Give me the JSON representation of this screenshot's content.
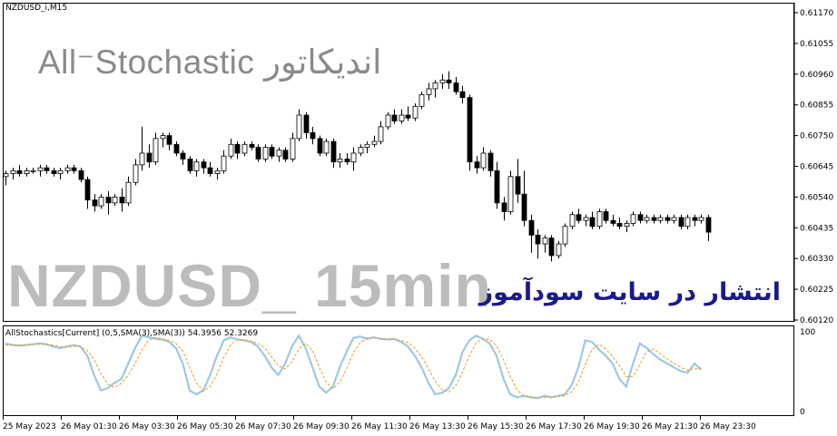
{
  "chart": {
    "symbol_label": "NZDUSD_i,M15",
    "price_axis": [
      "0.61170",
      "0.61055",
      "0.60960",
      "0.60855",
      "0.60750",
      "0.60645",
      "0.60540",
      "0.60435",
      "0.60330",
      "0.60225",
      "0.60120"
    ],
    "time_axis": [
      "25 May 2023",
      "26 May 01:30",
      "26 May 03:30",
      "26 May 05:30",
      "26 May 07:30",
      "26 May 09:30",
      "26 May 11:30",
      "26 May 13:30",
      "26 May 15:30",
      "26 May 17:30",
      "26 May 19:30",
      "26 May 21:30",
      "26 May 23:30"
    ],
    "colors": {
      "bull": "#ffffff",
      "bear": "#000000",
      "wick": "#000000",
      "stoch_main": "#9fc8e3",
      "stoch_signal": "#f39a1e",
      "publish_text": "#1a1a8c"
    }
  },
  "watermarks": {
    "indicator_title": "All⁻Stochastic اندیکاتور",
    "pair_title": "NZDUSD_ 15min",
    "publish_text": "انتشار در سایت سودآموز"
  },
  "indicator": {
    "label": "AllStochastics[Current] (0,5,SMA(3),SMA(3)) 54.3956 52.3269",
    "scale_top": "100",
    "scale_bottom": "0"
  },
  "chart_data": {
    "type": "candlestick",
    "price_range": [
      0.6012,
      0.6117
    ],
    "candles": [
      {
        "o": 0.6061,
        "h": 0.6063,
        "l": 0.6058,
        "c": 0.6062
      },
      {
        "o": 0.6062,
        "h": 0.6064,
        "l": 0.606,
        "c": 0.6063
      },
      {
        "o": 0.6063,
        "h": 0.6065,
        "l": 0.6061,
        "c": 0.6062
      },
      {
        "o": 0.6062,
        "h": 0.6064,
        "l": 0.6061,
        "c": 0.6063
      },
      {
        "o": 0.6063,
        "h": 0.6064,
        "l": 0.6062,
        "c": 0.6063
      },
      {
        "o": 0.6063,
        "h": 0.6065,
        "l": 0.6061,
        "c": 0.6064
      },
      {
        "o": 0.6064,
        "h": 0.6065,
        "l": 0.6062,
        "c": 0.6063
      },
      {
        "o": 0.6063,
        "h": 0.6064,
        "l": 0.6061,
        "c": 0.6062
      },
      {
        "o": 0.6062,
        "h": 0.6064,
        "l": 0.606,
        "c": 0.6063
      },
      {
        "o": 0.6063,
        "h": 0.6065,
        "l": 0.6062,
        "c": 0.6064
      },
      {
        "o": 0.6064,
        "h": 0.6065,
        "l": 0.6062,
        "c": 0.6063
      },
      {
        "o": 0.6063,
        "h": 0.6064,
        "l": 0.6059,
        "c": 0.606
      },
      {
        "o": 0.606,
        "h": 0.6061,
        "l": 0.605,
        "c": 0.6053
      },
      {
        "o": 0.6053,
        "h": 0.6055,
        "l": 0.6049,
        "c": 0.6051
      },
      {
        "o": 0.6051,
        "h": 0.6055,
        "l": 0.605,
        "c": 0.6054
      },
      {
        "o": 0.6054,
        "h": 0.6056,
        "l": 0.6048,
        "c": 0.6052
      },
      {
        "o": 0.6052,
        "h": 0.6055,
        "l": 0.6051,
        "c": 0.6054
      },
      {
        "o": 0.6054,
        "h": 0.6057,
        "l": 0.6049,
        "c": 0.6052
      },
      {
        "o": 0.6052,
        "h": 0.6061,
        "l": 0.6051,
        "c": 0.6059
      },
      {
        "o": 0.6059,
        "h": 0.6067,
        "l": 0.6058,
        "c": 0.6065
      },
      {
        "o": 0.6065,
        "h": 0.6078,
        "l": 0.6063,
        "c": 0.6069
      },
      {
        "o": 0.6069,
        "h": 0.6072,
        "l": 0.6064,
        "c": 0.6066
      },
      {
        "o": 0.6066,
        "h": 0.6076,
        "l": 0.6065,
        "c": 0.6074
      },
      {
        "o": 0.6074,
        "h": 0.6076,
        "l": 0.6071,
        "c": 0.6075
      },
      {
        "o": 0.6075,
        "h": 0.6076,
        "l": 0.607,
        "c": 0.6072
      },
      {
        "o": 0.6072,
        "h": 0.6073,
        "l": 0.6068,
        "c": 0.6069
      },
      {
        "o": 0.6069,
        "h": 0.607,
        "l": 0.6065,
        "c": 0.6067
      },
      {
        "o": 0.6067,
        "h": 0.6068,
        "l": 0.6062,
        "c": 0.6063
      },
      {
        "o": 0.6063,
        "h": 0.6067,
        "l": 0.6061,
        "c": 0.6066
      },
      {
        "o": 0.6066,
        "h": 0.6067,
        "l": 0.6062,
        "c": 0.6064
      },
      {
        "o": 0.6064,
        "h": 0.6066,
        "l": 0.6061,
        "c": 0.6062
      },
      {
        "o": 0.6062,
        "h": 0.6064,
        "l": 0.606,
        "c": 0.6063
      },
      {
        "o": 0.6063,
        "h": 0.607,
        "l": 0.6062,
        "c": 0.6068
      },
      {
        "o": 0.6068,
        "h": 0.6074,
        "l": 0.6067,
        "c": 0.6072
      },
      {
        "o": 0.6072,
        "h": 0.6073,
        "l": 0.6067,
        "c": 0.6069
      },
      {
        "o": 0.6069,
        "h": 0.6073,
        "l": 0.6068,
        "c": 0.6072
      },
      {
        "o": 0.6072,
        "h": 0.6073,
        "l": 0.607,
        "c": 0.6071
      },
      {
        "o": 0.6071,
        "h": 0.6072,
        "l": 0.6066,
        "c": 0.6067
      },
      {
        "o": 0.6067,
        "h": 0.6072,
        "l": 0.6066,
        "c": 0.6071
      },
      {
        "o": 0.6071,
        "h": 0.6072,
        "l": 0.6067,
        "c": 0.6068
      },
      {
        "o": 0.6068,
        "h": 0.6071,
        "l": 0.6066,
        "c": 0.607
      },
      {
        "o": 0.607,
        "h": 0.6071,
        "l": 0.6066,
        "c": 0.6067
      },
      {
        "o": 0.6067,
        "h": 0.6076,
        "l": 0.6066,
        "c": 0.6074
      },
      {
        "o": 0.6074,
        "h": 0.6084,
        "l": 0.6073,
        "c": 0.6082
      },
      {
        "o": 0.6082,
        "h": 0.6083,
        "l": 0.6074,
        "c": 0.6076
      },
      {
        "o": 0.6076,
        "h": 0.6078,
        "l": 0.6072,
        "c": 0.6074
      },
      {
        "o": 0.6074,
        "h": 0.6075,
        "l": 0.6068,
        "c": 0.6069
      },
      {
        "o": 0.6069,
        "h": 0.6074,
        "l": 0.6068,
        "c": 0.6073
      },
      {
        "o": 0.6073,
        "h": 0.6074,
        "l": 0.6064,
        "c": 0.6066
      },
      {
        "o": 0.6066,
        "h": 0.6069,
        "l": 0.6064,
        "c": 0.6067
      },
      {
        "o": 0.6067,
        "h": 0.6069,
        "l": 0.6065,
        "c": 0.6066
      },
      {
        "o": 0.6066,
        "h": 0.6071,
        "l": 0.6063,
        "c": 0.6069
      },
      {
        "o": 0.6069,
        "h": 0.6072,
        "l": 0.6068,
        "c": 0.6071
      },
      {
        "o": 0.6071,
        "h": 0.6073,
        "l": 0.6069,
        "c": 0.6072
      },
      {
        "o": 0.6072,
        "h": 0.6075,
        "l": 0.6071,
        "c": 0.6073
      },
      {
        "o": 0.6073,
        "h": 0.608,
        "l": 0.6072,
        "c": 0.6078
      },
      {
        "o": 0.6078,
        "h": 0.6083,
        "l": 0.6077,
        "c": 0.6082
      },
      {
        "o": 0.6082,
        "h": 0.6084,
        "l": 0.6079,
        "c": 0.608
      },
      {
        "o": 0.608,
        "h": 0.6084,
        "l": 0.6079,
        "c": 0.6082
      },
      {
        "o": 0.6082,
        "h": 0.6085,
        "l": 0.608,
        "c": 0.6081
      },
      {
        "o": 0.6081,
        "h": 0.6086,
        "l": 0.608,
        "c": 0.6085
      },
      {
        "o": 0.6085,
        "h": 0.609,
        "l": 0.6084,
        "c": 0.6089
      },
      {
        "o": 0.6089,
        "h": 0.6093,
        "l": 0.6087,
        "c": 0.6091
      },
      {
        "o": 0.6091,
        "h": 0.6094,
        "l": 0.6088,
        "c": 0.6093
      },
      {
        "o": 0.6093,
        "h": 0.6096,
        "l": 0.6091,
        "c": 0.6094
      },
      {
        "o": 0.6094,
        "h": 0.6097,
        "l": 0.6091,
        "c": 0.6093
      },
      {
        "o": 0.6093,
        "h": 0.6095,
        "l": 0.6089,
        "c": 0.609
      },
      {
        "o": 0.609,
        "h": 0.6092,
        "l": 0.6086,
        "c": 0.6088
      },
      {
        "o": 0.6088,
        "h": 0.6089,
        "l": 0.6063,
        "c": 0.6066
      },
      {
        "o": 0.6066,
        "h": 0.6068,
        "l": 0.6062,
        "c": 0.6064
      },
      {
        "o": 0.6064,
        "h": 0.6071,
        "l": 0.6063,
        "c": 0.6069
      },
      {
        "o": 0.6069,
        "h": 0.607,
        "l": 0.6061,
        "c": 0.6063
      },
      {
        "o": 0.6063,
        "h": 0.6066,
        "l": 0.605,
        "c": 0.6052
      },
      {
        "o": 0.6052,
        "h": 0.6054,
        "l": 0.6046,
        "c": 0.6049
      },
      {
        "o": 0.6049,
        "h": 0.6063,
        "l": 0.6048,
        "c": 0.6061
      },
      {
        "o": 0.6061,
        "h": 0.6067,
        "l": 0.6052,
        "c": 0.6055
      },
      {
        "o": 0.6055,
        "h": 0.6063,
        "l": 0.6044,
        "c": 0.6046
      },
      {
        "o": 0.6046,
        "h": 0.6048,
        "l": 0.6035,
        "c": 0.6041
      },
      {
        "o": 0.6041,
        "h": 0.6043,
        "l": 0.6033,
        "c": 0.6038
      },
      {
        "o": 0.6038,
        "h": 0.6041,
        "l": 0.6035,
        "c": 0.604
      },
      {
        "o": 0.604,
        "h": 0.6041,
        "l": 0.6032,
        "c": 0.6034
      },
      {
        "o": 0.6034,
        "h": 0.6039,
        "l": 0.6033,
        "c": 0.6038
      },
      {
        "o": 0.6038,
        "h": 0.6045,
        "l": 0.6037,
        "c": 0.6044
      },
      {
        "o": 0.6044,
        "h": 0.6049,
        "l": 0.6043,
        "c": 0.6048
      },
      {
        "o": 0.6048,
        "h": 0.605,
        "l": 0.6045,
        "c": 0.6046
      },
      {
        "o": 0.6046,
        "h": 0.6048,
        "l": 0.6044,
        "c": 0.6047
      },
      {
        "o": 0.6047,
        "h": 0.6049,
        "l": 0.6043,
        "c": 0.6044
      },
      {
        "o": 0.6044,
        "h": 0.605,
        "l": 0.6043,
        "c": 0.6049
      },
      {
        "o": 0.6049,
        "h": 0.605,
        "l": 0.6045,
        "c": 0.6046
      },
      {
        "o": 0.6046,
        "h": 0.6048,
        "l": 0.6044,
        "c": 0.6045
      },
      {
        "o": 0.6045,
        "h": 0.6047,
        "l": 0.6043,
        "c": 0.6044
      },
      {
        "o": 0.6044,
        "h": 0.6046,
        "l": 0.6042,
        "c": 0.6045
      },
      {
        "o": 0.6045,
        "h": 0.6049,
        "l": 0.6044,
        "c": 0.6048
      },
      {
        "o": 0.6048,
        "h": 0.6049,
        "l": 0.6045,
        "c": 0.6046
      },
      {
        "o": 0.6046,
        "h": 0.6048,
        "l": 0.6045,
        "c": 0.6047
      },
      {
        "o": 0.6047,
        "h": 0.6048,
        "l": 0.6045,
        "c": 0.6046
      },
      {
        "o": 0.6046,
        "h": 0.6048,
        "l": 0.6045,
        "c": 0.6047
      },
      {
        "o": 0.6047,
        "h": 0.6048,
        "l": 0.6045,
        "c": 0.6046
      },
      {
        "o": 0.6046,
        "h": 0.6048,
        "l": 0.6045,
        "c": 0.6047
      },
      {
        "o": 0.6047,
        "h": 0.6048,
        "l": 0.6043,
        "c": 0.6044
      },
      {
        "o": 0.6044,
        "h": 0.6048,
        "l": 0.6043,
        "c": 0.6047
      },
      {
        "o": 0.6047,
        "h": 0.6048,
        "l": 0.6044,
        "c": 0.6046
      },
      {
        "o": 0.6046,
        "h": 0.6048,
        "l": 0.6045,
        "c": 0.6047
      },
      {
        "o": 0.6047,
        "h": 0.6048,
        "l": 0.6039,
        "c": 0.6042
      }
    ],
    "stochastic": {
      "range": [
        0,
        100
      ],
      "main": [
        86,
        84,
        83,
        84,
        85,
        86,
        85,
        82,
        80,
        82,
        84,
        82,
        70,
        45,
        25,
        28,
        35,
        40,
        60,
        80,
        96,
        94,
        92,
        91,
        88,
        80,
        60,
        25,
        20,
        25,
        45,
        70,
        90,
        94,
        91,
        90,
        88,
        82,
        70,
        55,
        45,
        60,
        82,
        96,
        80,
        55,
        30,
        22,
        30,
        55,
        75,
        93,
        95,
        92,
        94,
        92,
        91,
        92,
        88,
        82,
        70,
        55,
        35,
        20,
        22,
        28,
        45,
        75,
        90,
        96,
        92,
        86,
        70,
        40,
        20,
        16,
        18,
        16,
        15,
        18,
        16,
        18,
        20,
        32,
        55,
        90,
        88,
        78,
        70,
        60,
        40,
        30,
        60,
        86,
        80,
        72,
        65,
        60,
        55,
        50,
        48,
        60,
        52
      ],
      "signal": [
        84,
        84,
        84,
        84,
        85,
        85,
        85,
        84,
        82,
        81,
        82,
        82,
        77,
        65,
        47,
        33,
        29,
        34,
        45,
        60,
        78,
        90,
        94,
        92,
        90,
        86,
        76,
        55,
        35,
        24,
        30,
        46,
        68,
        84,
        91,
        91,
        89,
        86,
        80,
        69,
        57,
        53,
        62,
        79,
        86,
        77,
        55,
        36,
        27,
        36,
        53,
        74,
        87,
        93,
        93,
        92,
        92,
        91,
        90,
        87,
        80,
        69,
        53,
        37,
        26,
        23,
        31,
        49,
        70,
        87,
        92,
        91,
        83,
        65,
        43,
        26,
        18,
        17,
        16,
        16,
        17,
        17,
        18,
        23,
        36,
        59,
        78,
        85,
        79,
        69,
        57,
        43,
        43,
        59,
        75,
        79,
        72,
        66,
        60,
        55,
        51,
        53,
        54
      ]
    }
  }
}
